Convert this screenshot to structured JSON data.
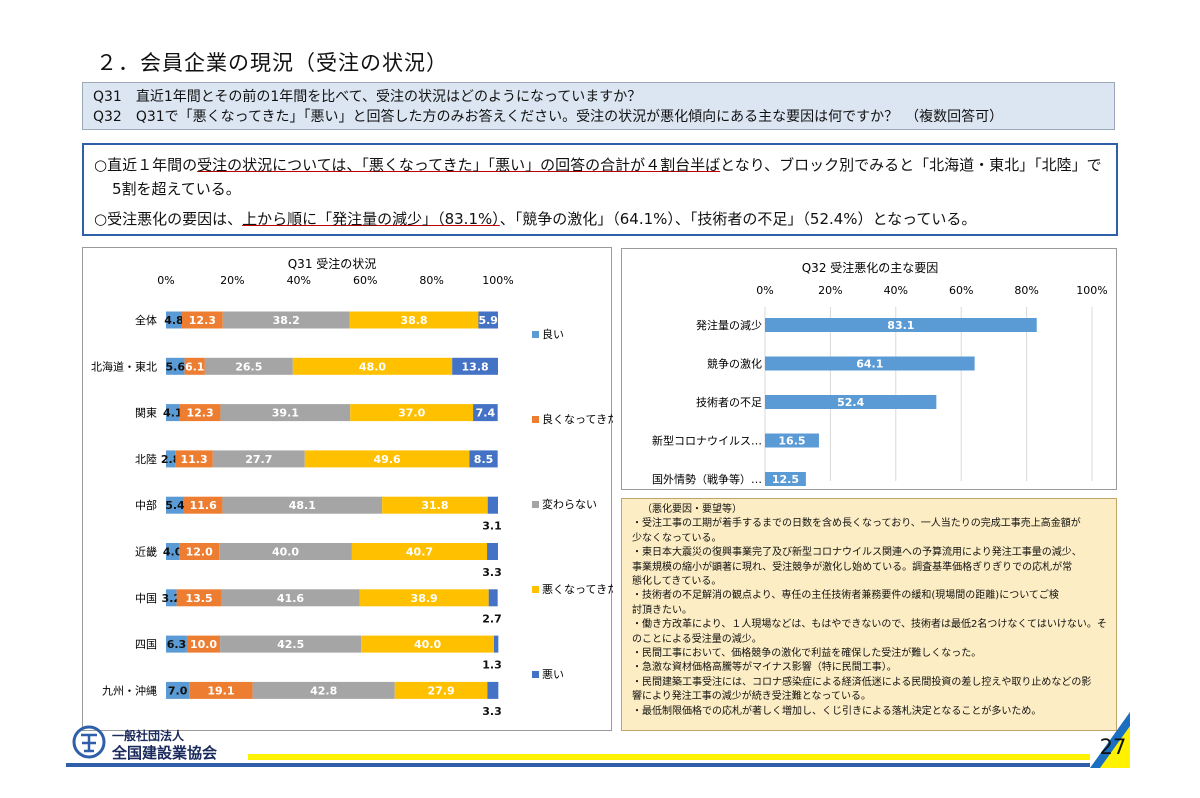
{
  "title": "２．会員企業の現況（受注の状況）",
  "questions": [
    "Q31　直近1年間とその前の1年間を比べて、受注の状況はどのようになっていますか？",
    "Q32　Q31で「悪くなってきた」「悪い」と回答した方のみお答えください。受注の状況が悪化傾向にある主な要因は何ですか？　（複数回答可）"
  ],
  "summary": {
    "line1_pre": "○直近１年間の",
    "line1_ul": "受注の状況については、「悪くなってきた」「悪い」の回答の合計が４割台半ば",
    "line1_post": "となり、ブロック別でみると「北海道・東北」「北陸」で",
    "line2": "5割を超えている。",
    "line3_pre": "○受注悪化の要因は、",
    "line3_ul": "上から順に「発注量の減少」（83.1%）",
    "line3_post": "、「競争の激化」（64.1%）、「技術者の不足」（52.4%）となっている。"
  },
  "colors": {
    "good": "#5b9bd5",
    "worse": "#ed7d31",
    "same": "#a5a5a5",
    "getting_bad": "#ffc000",
    "bad": "#4472c4",
    "q32bar": "#5b9bd5"
  },
  "chart_data": [
    {
      "type": "bar",
      "orientation": "horizontal-stacked-100",
      "title": "Q31 受注の状況",
      "xlim": [
        0,
        100
      ],
      "ticks": [
        "0%",
        "20%",
        "40%",
        "60%",
        "80%",
        "100%"
      ],
      "categories": [
        "全体",
        "北海道・東北",
        "関東",
        "北陸",
        "中部",
        "近畿",
        "中国",
        "四国",
        "九州・沖縄"
      ],
      "series": [
        {
          "name": "良い",
          "values": [
            4.8,
            5.6,
            4.1,
            2.8,
            5.4,
            4.0,
            3.2,
            6.3,
            7.0
          ]
        },
        {
          "name": "良くなってきた",
          "values": [
            12.3,
            6.1,
            12.3,
            11.3,
            11.6,
            12.0,
            13.5,
            10.0,
            19.1
          ]
        },
        {
          "name": "変わらない",
          "values": [
            38.2,
            26.5,
            39.1,
            27.7,
            48.1,
            40.0,
            41.6,
            42.5,
            42.8
          ]
        },
        {
          "name": "悪くなってきた",
          "values": [
            38.8,
            48.0,
            37.0,
            49.6,
            31.8,
            40.7,
            38.9,
            40.0,
            27.9
          ]
        },
        {
          "name": "悪い",
          "values": [
            5.9,
            13.8,
            7.4,
            8.5,
            3.1,
            3.3,
            2.7,
            1.3,
            3.3
          ]
        }
      ],
      "legend_position": "right"
    },
    {
      "type": "bar",
      "orientation": "horizontal",
      "title": "Q32 受注悪化の主な要因",
      "xlim": [
        0,
        100
      ],
      "ticks": [
        "0%",
        "20%",
        "40%",
        "60%",
        "80%",
        "100%"
      ],
      "categories": [
        "発注量の減少",
        "競争の激化",
        "技術者の不足",
        "新型コロナウイルス…",
        "国外情勢（戦争等）…"
      ],
      "values": [
        83.1,
        64.1,
        52.4,
        16.5,
        12.5
      ]
    }
  ],
  "notes": {
    "heading": "（悪化要因・要望等）",
    "lines": [
      "・受注工事の工期が着手するまでの日数を含め長くなっており、一人当たりの完成工事売上高金額が",
      "少なくなっている。",
      "・東日本大震災の復興事業完了及び新型コロナウイルス関連への予算流用により発注工事量の減少、",
      "事業規模の縮小が顕著に現れ、受注競争が激化し始めている。調査基準価格ぎりぎりでの応札が常",
      "態化してきている。",
      "・技術者の不足解消の観点より、専任の主任技術者兼務要件の緩和(現場間の距離)についてご検",
      "討頂きたい。",
      "・働き方改革により、１人現場などは、もはやできないので、技術者は最低2名つけなくてはいけない。そ",
      "のことによる受注量の減少。",
      "・民間工事において、価格競争の激化で利益を確保した受注が難しくなった。",
      "・急激な資材価格高騰等がマイナス影響（特に民間工事）。",
      "・民間建築工事受注には、コロナ感染症による経済低迷による民間投資の差し控えや取り止めなどの影",
      "響により発注工事の減少が続き受注難となっている。",
      "・最低制限価格での応札が著しく増加し、くじ引きによる落札決定となることが多いため。"
    ]
  },
  "footer": {
    "org_line1": "一般社団法人",
    "org_line2": "全国建設業協会",
    "page": "27"
  }
}
